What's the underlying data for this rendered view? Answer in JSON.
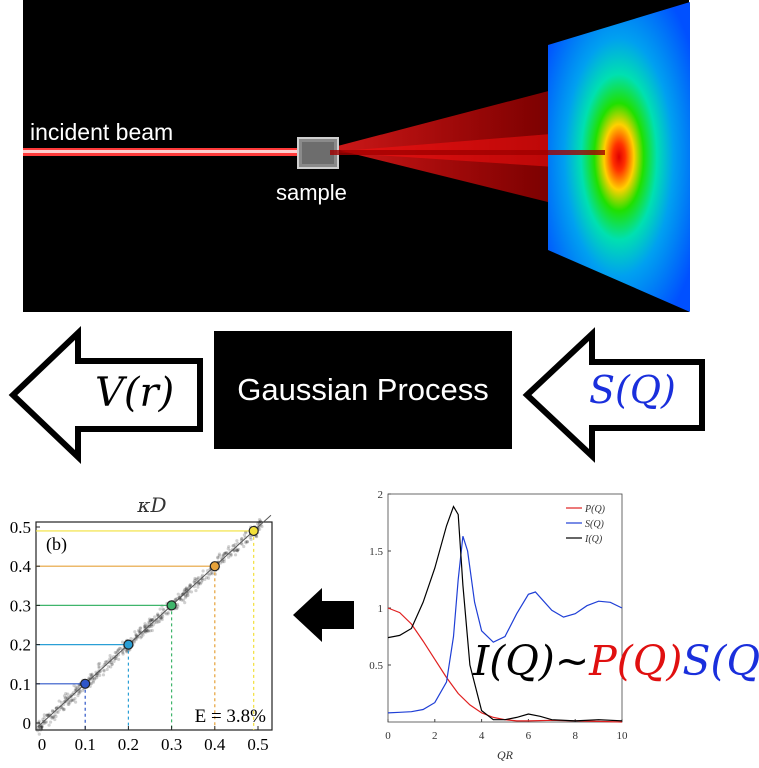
{
  "scattering_panel": {
    "incident_label": "incident beam",
    "sample_label": "sample"
  },
  "flow": {
    "process_label": "Gaussian Process",
    "left_symbol": "V(r)",
    "right_symbol": "S(Q)"
  },
  "parity_plot": {
    "panel_label": "(b)",
    "title": "κD",
    "error_label": "E = 3.8%",
    "x_ticks": [
      "0",
      "0.1",
      "0.2",
      "0.3",
      "0.4",
      "0.5"
    ],
    "y_ticks": [
      "0",
      "0.1",
      "0.2",
      "0.3",
      "0.4",
      "0.5"
    ],
    "highlight_points": [
      0.1,
      0.2,
      0.3,
      0.4,
      0.49
    ],
    "colors": {
      "point_1": "#2f56c8",
      "point_2": "#2a9fd6",
      "point_3": "#3fb56b",
      "point_4": "#e6a23a",
      "point_5": "#f2e03a"
    }
  },
  "chart_data": {
    "type": "line",
    "xlabel": "QR",
    "ylabel": "",
    "xlim": [
      0,
      10
    ],
    "ylim": [
      0,
      2
    ],
    "x_ticks": [
      "0",
      "2",
      "4",
      "6",
      "8",
      "10"
    ],
    "y_ticks": [
      "0.5",
      "1",
      "1.5",
      "2"
    ],
    "legend_position": "top-right",
    "series": [
      {
        "name": "P(Q)",
        "color": "#e02020",
        "x": [
          0,
          0.5,
          1,
          1.5,
          2,
          2.5,
          3,
          3.5,
          4,
          4.5,
          5,
          5.5,
          6,
          7,
          8,
          9,
          10
        ],
        "y": [
          1,
          0.96,
          0.86,
          0.71,
          0.55,
          0.39,
          0.25,
          0.15,
          0.08,
          0.04,
          0.02,
          0.01,
          0.01,
          0.015,
          0.01,
          0.005,
          0
        ]
      },
      {
        "name": "S(Q)",
        "color": "#1f3fd6",
        "x": [
          0,
          0.5,
          1,
          1.5,
          2,
          2.5,
          2.8,
          3,
          3.2,
          3.4,
          3.7,
          4,
          4.5,
          5,
          5.5,
          6,
          6.3,
          7,
          7.5,
          8,
          8.5,
          9,
          9.5,
          10
        ],
        "y": [
          0.08,
          0.085,
          0.09,
          0.11,
          0.17,
          0.35,
          0.75,
          1.25,
          1.63,
          1.5,
          1.05,
          0.8,
          0.7,
          0.75,
          0.95,
          1.12,
          1.14,
          0.98,
          0.92,
          0.95,
          1.02,
          1.06,
          1.05,
          1.0
        ]
      },
      {
        "name": "I(Q)",
        "color": "#000000",
        "x": [
          0,
          0.5,
          1,
          1.5,
          2,
          2.5,
          2.8,
          3,
          3.2,
          3.5,
          4,
          4.5,
          5,
          5.5,
          6,
          6.5,
          7,
          8,
          9,
          10
        ],
        "y": [
          0.74,
          0.76,
          0.82,
          1.05,
          1.35,
          1.72,
          1.89,
          1.82,
          1.2,
          0.5,
          0.1,
          0.02,
          0.02,
          0.04,
          0.07,
          0.05,
          0.02,
          0.01,
          0.02,
          0.01
        ]
      }
    ]
  },
  "formula": {
    "lhs": "I(Q)",
    "tilde": "~",
    "p": "P(Q)",
    "s": "S(Q)"
  }
}
